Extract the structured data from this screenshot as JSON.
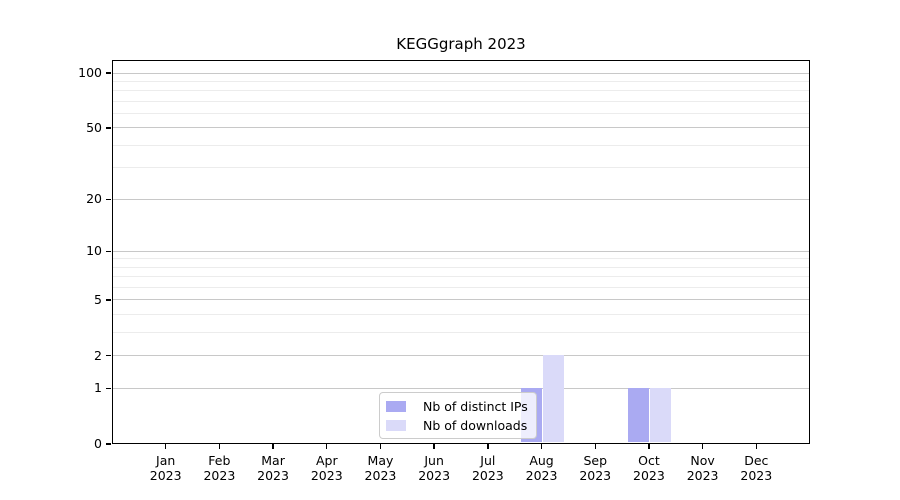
{
  "chart_data": {
    "type": "bar",
    "title": "KEGGgraph 2023",
    "categories": [
      {
        "month": "Jan",
        "year": "2023"
      },
      {
        "month": "Feb",
        "year": "2023"
      },
      {
        "month": "Mar",
        "year": "2023"
      },
      {
        "month": "Apr",
        "year": "2023"
      },
      {
        "month": "May",
        "year": "2023"
      },
      {
        "month": "Jun",
        "year": "2023"
      },
      {
        "month": "Jul",
        "year": "2023"
      },
      {
        "month": "Aug",
        "year": "2023"
      },
      {
        "month": "Sep",
        "year": "2023"
      },
      {
        "month": "Oct",
        "year": "2023"
      },
      {
        "month": "Nov",
        "year": "2023"
      },
      {
        "month": "Dec",
        "year": "2023"
      }
    ],
    "series": [
      {
        "name": "Nb of distinct IPs",
        "color": "#aaaaf2",
        "values": [
          0,
          0,
          0,
          0,
          0,
          0,
          0,
          1,
          0,
          1,
          0,
          0
        ]
      },
      {
        "name": "Nb of downloads",
        "color": "#dadaf9",
        "values": [
          0,
          0,
          0,
          0,
          0,
          0,
          0,
          2,
          0,
          1,
          0,
          0
        ]
      }
    ],
    "yscale": "log1p",
    "yticks": [
      0,
      1,
      2,
      5,
      10,
      20,
      50,
      100
    ],
    "minor_yticks": [
      3,
      4,
      6,
      7,
      8,
      9,
      30,
      40,
      60,
      70,
      80,
      90
    ],
    "ylim": [
      0,
      118
    ],
    "grid": true,
    "legend_position": "bottom-center",
    "colors": {
      "major_grid": "#c8c8c8",
      "minor_grid": "#ececec",
      "spine": "#000000",
      "background": "#ffffff"
    }
  }
}
